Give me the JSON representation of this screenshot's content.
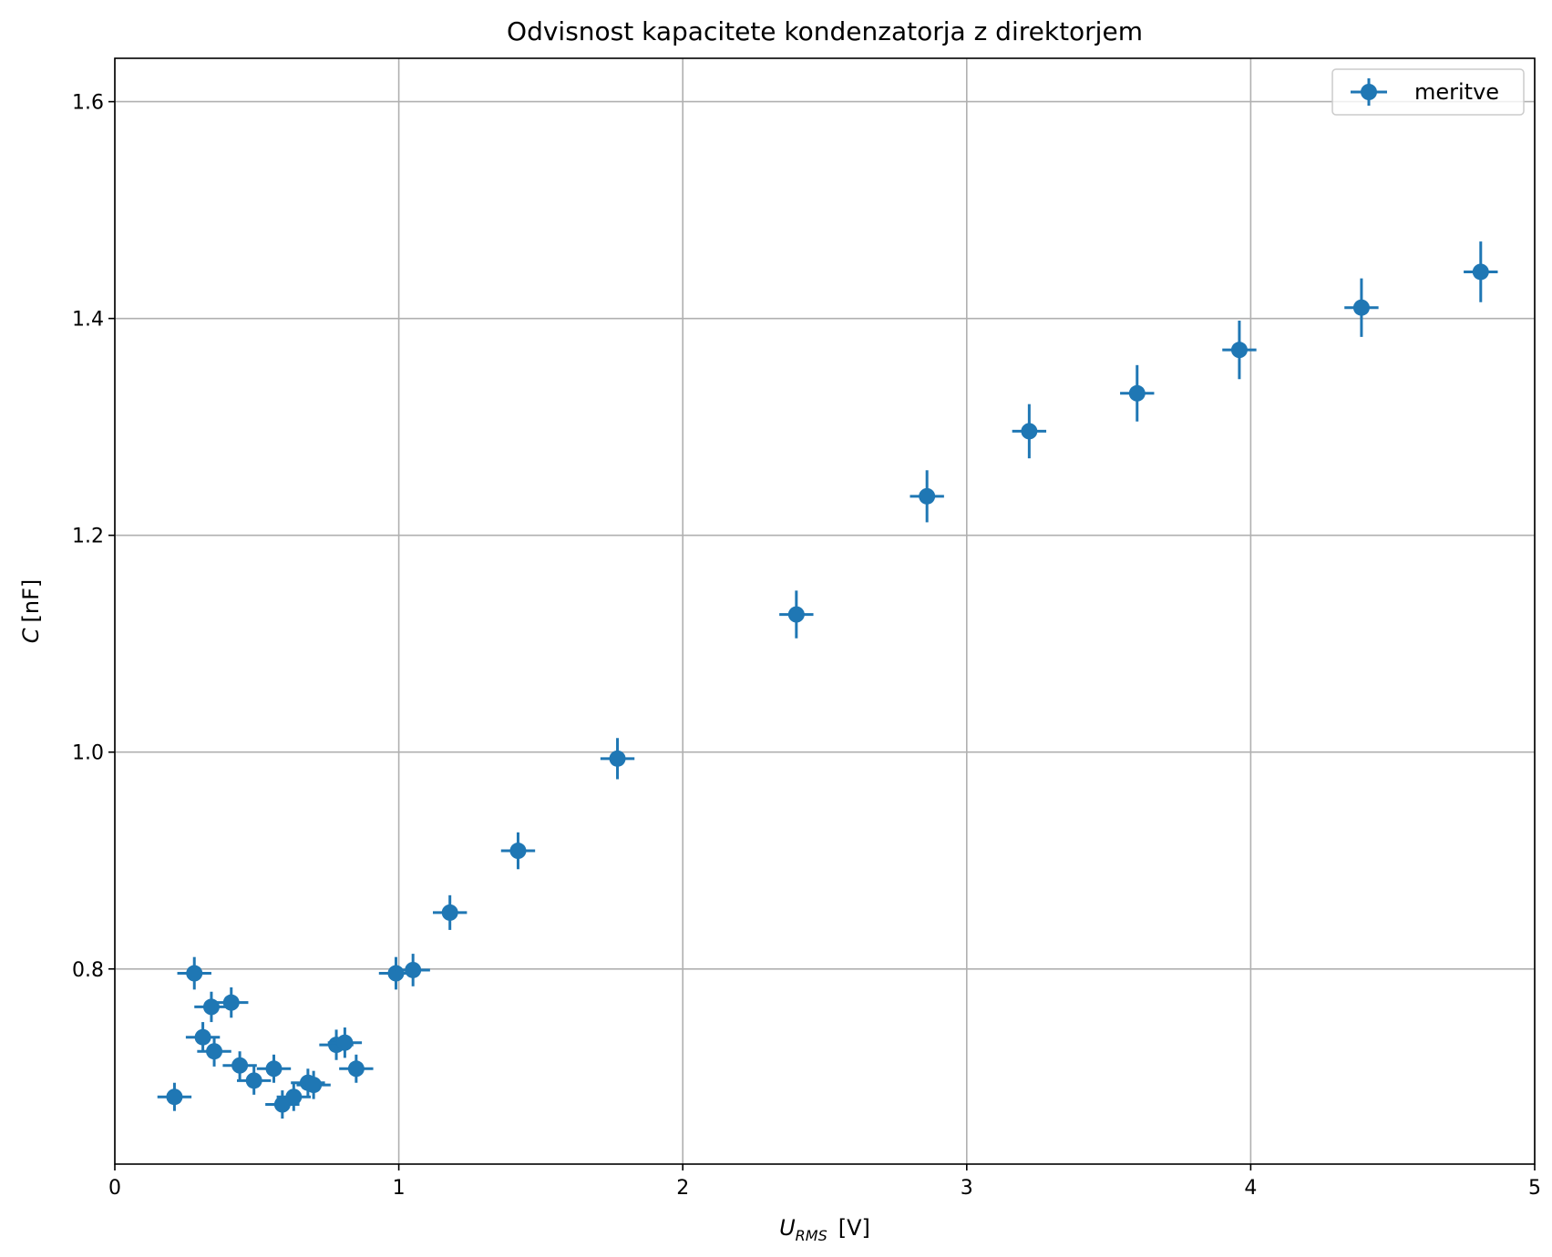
{
  "chart_data": {
    "type": "scatter",
    "title": "Odvisnost kapacitete kondenzatorja z direktorjem",
    "xlabel": {
      "symbol": "U",
      "subscript": "RMS",
      "unit": "[V]"
    },
    "ylabel": {
      "symbol": "C",
      "unit": "[nF]"
    },
    "xlim": [
      0,
      5
    ],
    "ylim": [
      0.62,
      1.64
    ],
    "xticks": [
      0,
      1,
      2,
      3,
      4,
      5
    ],
    "xtick_labels": [
      "0",
      "1",
      "2",
      "3",
      "4",
      "5"
    ],
    "yticks": [
      0.8,
      1.0,
      1.2,
      1.4,
      1.6
    ],
    "ytick_labels": [
      "0.8",
      "1.0",
      "1.2",
      "1.4",
      "1.6"
    ],
    "grid": true,
    "legend_position": "top-right",
    "color": "#1f77b4",
    "series": [
      {
        "name": "meritve",
        "points": [
          {
            "x": 0.21,
            "y": 0.682,
            "xerr": 0.06,
            "yerr": 0.013
          },
          {
            "x": 0.28,
            "y": 0.796,
            "xerr": 0.06,
            "yerr": 0.015
          },
          {
            "x": 0.31,
            "y": 0.737,
            "xerr": 0.06,
            "yerr": 0.014
          },
          {
            "x": 0.34,
            "y": 0.765,
            "xerr": 0.06,
            "yerr": 0.014
          },
          {
            "x": 0.35,
            "y": 0.724,
            "xerr": 0.06,
            "yerr": 0.014
          },
          {
            "x": 0.41,
            "y": 0.769,
            "xerr": 0.06,
            "yerr": 0.014
          },
          {
            "x": 0.44,
            "y": 0.711,
            "xerr": 0.06,
            "yerr": 0.013
          },
          {
            "x": 0.49,
            "y": 0.697,
            "xerr": 0.06,
            "yerr": 0.013
          },
          {
            "x": 0.56,
            "y": 0.708,
            "xerr": 0.06,
            "yerr": 0.013
          },
          {
            "x": 0.59,
            "y": 0.675,
            "xerr": 0.06,
            "yerr": 0.013
          },
          {
            "x": 0.63,
            "y": 0.682,
            "xerr": 0.06,
            "yerr": 0.013
          },
          {
            "x": 0.68,
            "y": 0.695,
            "xerr": 0.06,
            "yerr": 0.013
          },
          {
            "x": 0.7,
            "y": 0.693,
            "xerr": 0.06,
            "yerr": 0.013
          },
          {
            "x": 0.78,
            "y": 0.73,
            "xerr": 0.06,
            "yerr": 0.014
          },
          {
            "x": 0.81,
            "y": 0.732,
            "xerr": 0.06,
            "yerr": 0.014
          },
          {
            "x": 0.85,
            "y": 0.708,
            "xerr": 0.06,
            "yerr": 0.013
          },
          {
            "x": 0.99,
            "y": 0.796,
            "xerr": 0.06,
            "yerr": 0.015
          },
          {
            "x": 1.05,
            "y": 0.799,
            "xerr": 0.06,
            "yerr": 0.015
          },
          {
            "x": 1.18,
            "y": 0.852,
            "xerr": 0.06,
            "yerr": 0.016
          },
          {
            "x": 1.42,
            "y": 0.909,
            "xerr": 0.06,
            "yerr": 0.017
          },
          {
            "x": 1.77,
            "y": 0.994,
            "xerr": 0.06,
            "yerr": 0.019
          },
          {
            "x": 2.4,
            "y": 1.127,
            "xerr": 0.06,
            "yerr": 0.022
          },
          {
            "x": 2.86,
            "y": 1.236,
            "xerr": 0.06,
            "yerr": 0.024
          },
          {
            "x": 3.22,
            "y": 1.296,
            "xerr": 0.06,
            "yerr": 0.025
          },
          {
            "x": 3.6,
            "y": 1.331,
            "xerr": 0.06,
            "yerr": 0.026
          },
          {
            "x": 3.96,
            "y": 1.371,
            "xerr": 0.06,
            "yerr": 0.027
          },
          {
            "x": 4.39,
            "y": 1.41,
            "xerr": 0.06,
            "yerr": 0.027
          },
          {
            "x": 4.81,
            "y": 1.443,
            "xerr": 0.06,
            "yerr": 0.028
          }
        ]
      }
    ]
  }
}
